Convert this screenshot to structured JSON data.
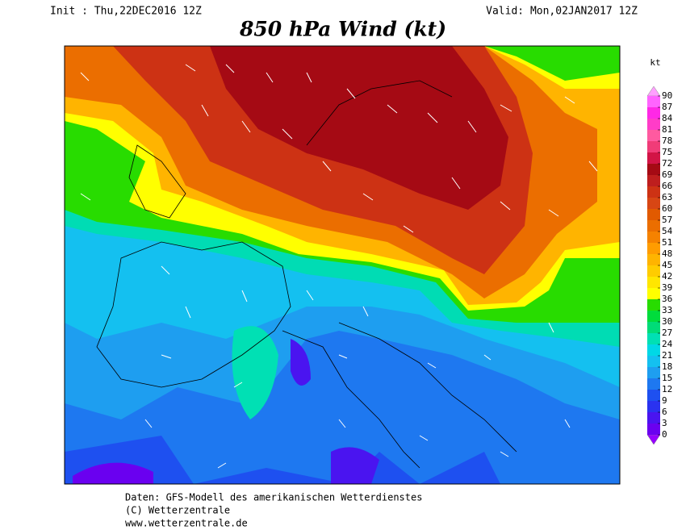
{
  "header": {
    "init": "Init : Thu,22DEC2016 12Z",
    "valid": "Valid: Mon,02JAN2017 12Z"
  },
  "title": "850 hPa Wind (kt)",
  "colorbar": {
    "unit": "kt",
    "levels": [
      0,
      3,
      6,
      9,
      12,
      15,
      18,
      21,
      24,
      27,
      30,
      33,
      36,
      39,
      42,
      45,
      48,
      51,
      54,
      57,
      60,
      63,
      66,
      69,
      72,
      75,
      78,
      81,
      84,
      87,
      90
    ],
    "colors": [
      "#9600ff",
      "#6a00f0",
      "#4a14f0",
      "#2a32f0",
      "#1e50f0",
      "#1e78f0",
      "#1e9ef0",
      "#14c0f0",
      "#00d8e6",
      "#00e0b4",
      "#00dc78",
      "#00dc3c",
      "#28dc00",
      "#ffff00",
      "#ffe600",
      "#ffcc00",
      "#ffb400",
      "#ff9c00",
      "#f58200",
      "#eb6e00",
      "#e15a00",
      "#d74614",
      "#cd3214",
      "#be1e1e",
      "#a50a14",
      "#d21446",
      "#f03c78",
      "#ff5aa0",
      "#ff3cc8",
      "#ff28e6",
      "#ff64ff",
      "#ffa0ff"
    ]
  },
  "footer": [
    "Daten: GFS-Modell des amerikanischen Wetterdienstes",
    "(C) Wetterzentrale",
    "www.wetterzentrale.de"
  ]
}
